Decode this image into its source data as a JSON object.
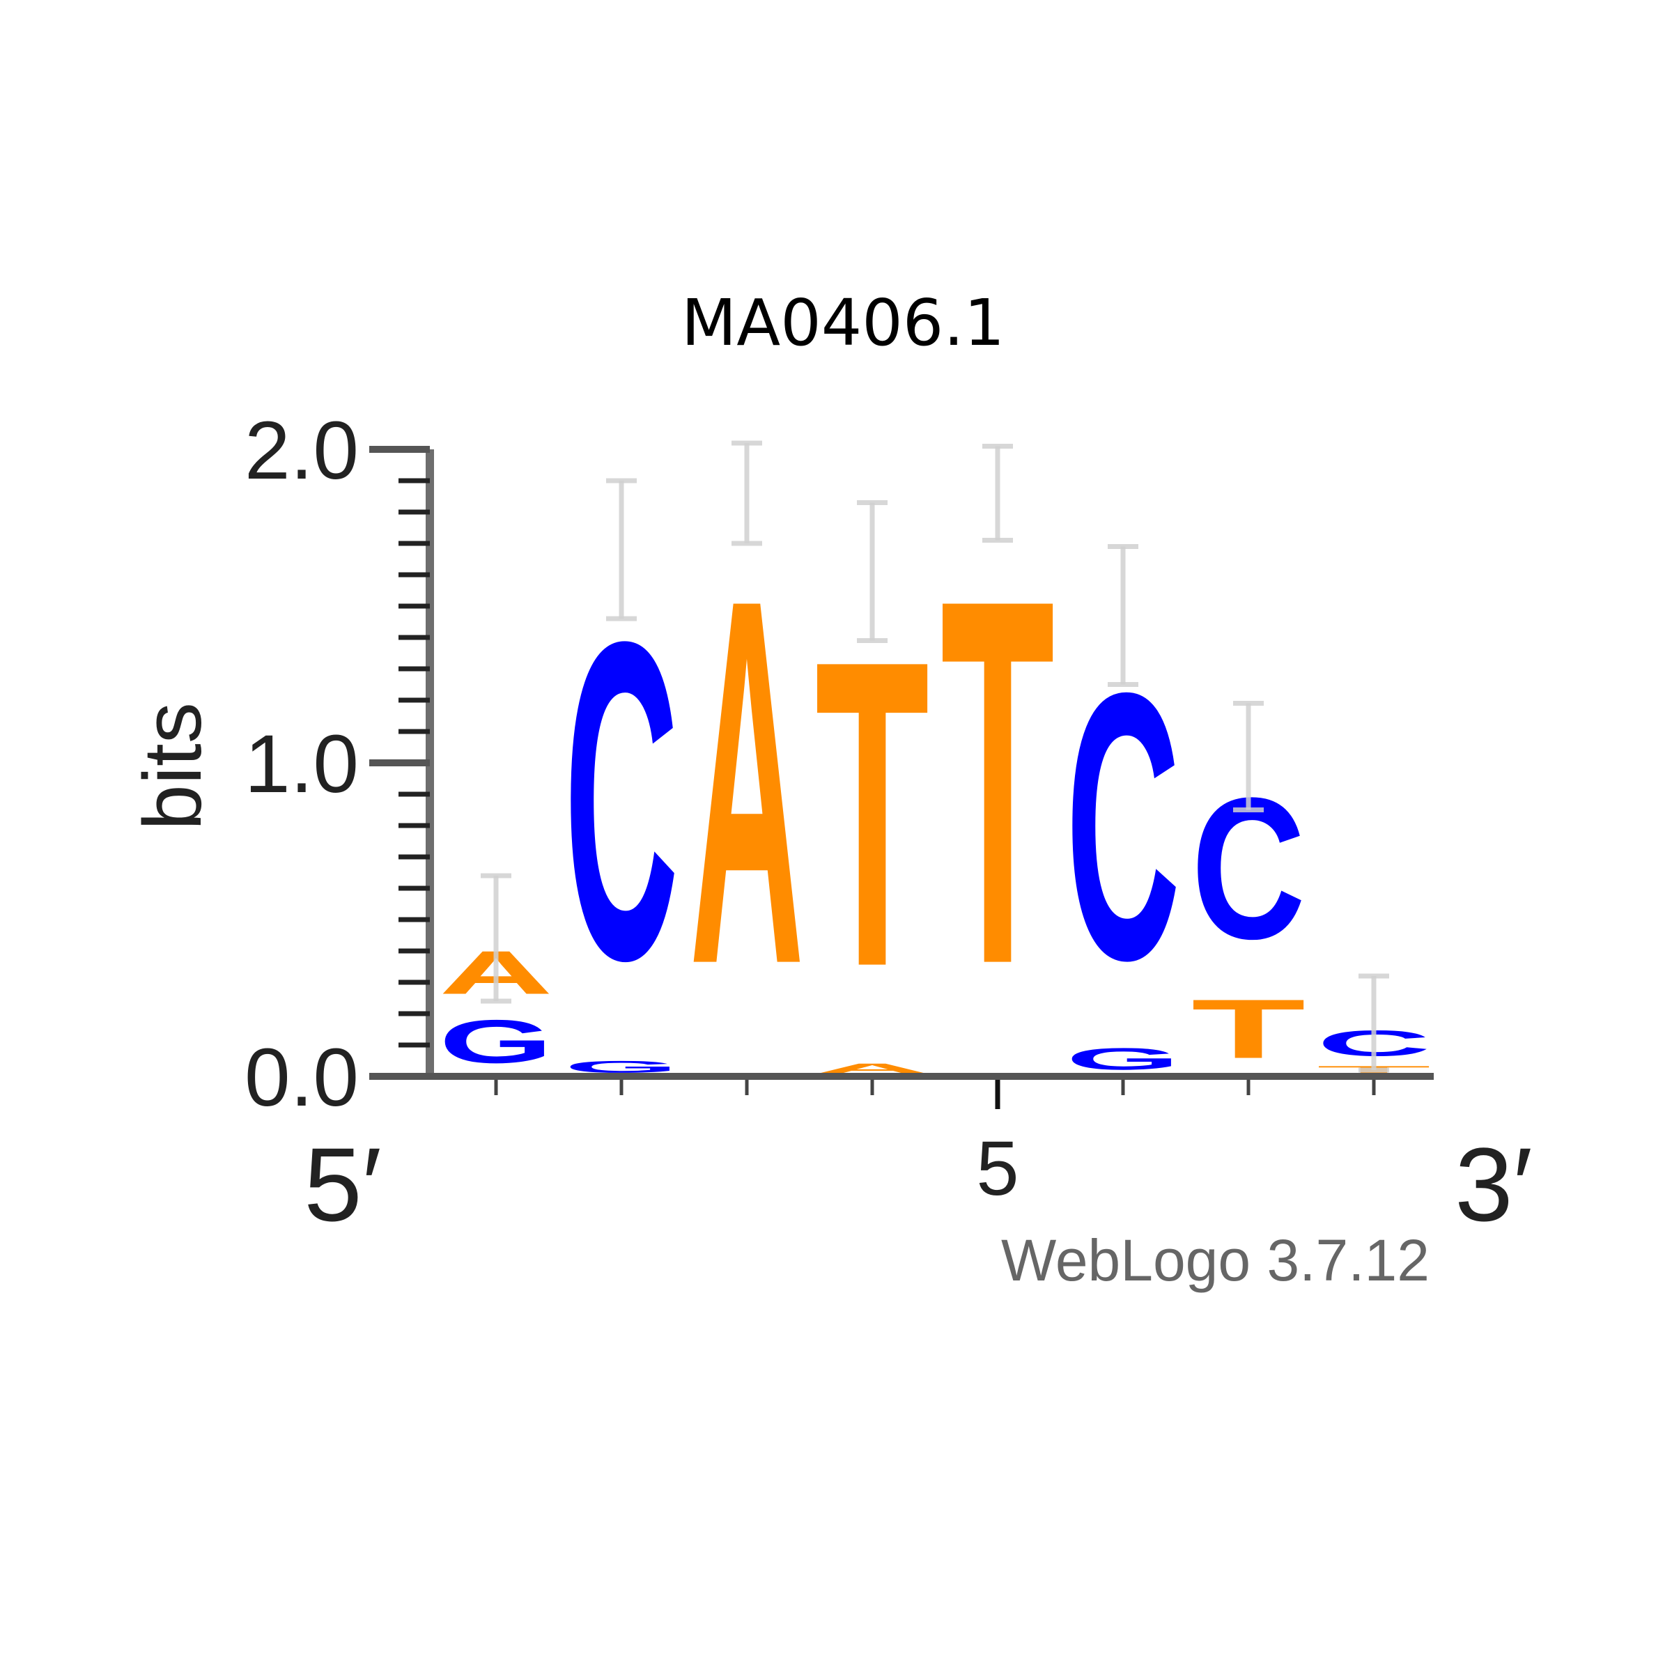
{
  "chart_data": {
    "type": "sequence-logo",
    "title": "MA0406.1",
    "ylabel": "bits",
    "ylim": [
      0,
      2
    ],
    "y_ticks": [
      "0.0",
      "1.0",
      "2.0"
    ],
    "x_tick_label": "5",
    "x_tick_position": 5,
    "x_start_label": "5′",
    "x_end_label": "3′",
    "credit": "WebLogo 3.7.12",
    "colors": {
      "A": "#ff8c00",
      "T": "#ff8c00",
      "C": "#0000ff",
      "G": "#0000ff",
      "errorbar": "#d0d0d0"
    },
    "positions": [
      {
        "pos": 1,
        "stack": [
          {
            "letter": "G",
            "bits": 0.22
          },
          {
            "letter": "A",
            "bits": 0.22
          }
        ],
        "error": 0.2
      },
      {
        "pos": 2,
        "stack": [
          {
            "letter": "G",
            "bits": 0.06
          },
          {
            "letter": "C",
            "bits": 1.62
          }
        ],
        "error": 0.22
      },
      {
        "pos": 3,
        "stack": [
          {
            "letter": "A",
            "bits": 1.86
          }
        ],
        "error": 0.16
      },
      {
        "pos": 4,
        "stack": [
          {
            "letter": "A",
            "bits": 0.05
          },
          {
            "letter": "T",
            "bits": 1.56
          }
        ],
        "error": 0.22
      },
      {
        "pos": 5,
        "stack": [
          {
            "letter": "T",
            "bits": 1.86
          }
        ],
        "error": 0.15
      },
      {
        "pos": 6,
        "stack": [
          {
            "letter": "G",
            "bits": 0.11
          },
          {
            "letter": "C",
            "bits": 1.36
          }
        ],
        "error": 0.22
      },
      {
        "pos": 7,
        "stack": [
          {
            "letter": "T",
            "bits": 0.3
          },
          {
            "letter": "C",
            "bits": 0.72
          }
        ],
        "error": 0.17
      },
      {
        "pos": 8,
        "stack": [
          {
            "letter": "T",
            "bits": 0.04
          },
          {
            "letter": "C",
            "bits": 0.13
          }
        ],
        "error": 0.15
      }
    ]
  }
}
